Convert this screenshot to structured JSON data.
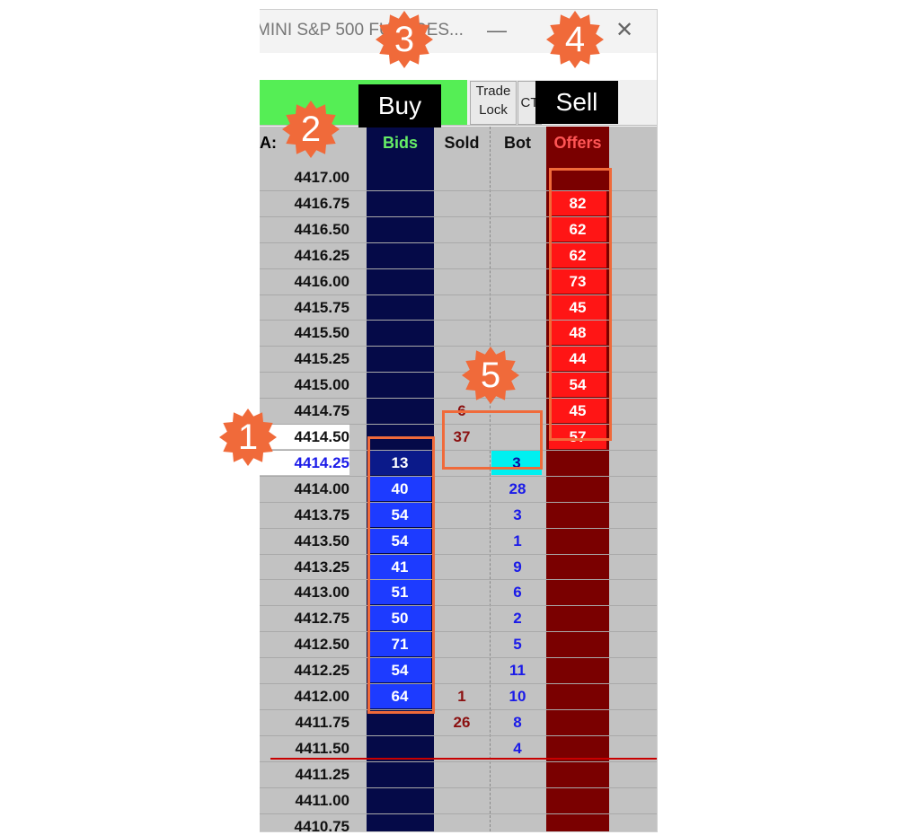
{
  "window": {
    "title": "MINI S&P 500 FUTURES...",
    "minimize_glyph": "—",
    "close_glyph": "✕",
    "toolbar": {
      "trade_lock": [
        "Trade",
        "Lock"
      ],
      "ct_label": "CT"
    }
  },
  "ladder": {
    "price_header": "A:",
    "headers": {
      "bids": "Bids",
      "sold": "Sold",
      "bot": "Bot",
      "offers": "Offers"
    },
    "header_colors": {
      "bids": "#66ee66",
      "sold": "#111111",
      "bot": "#111111",
      "offers": "#ff5555"
    },
    "rows": [
      {
        "price": "4417.00",
        "bid": "",
        "sold": "",
        "bot": "",
        "offer": ""
      },
      {
        "price": "4416.75",
        "bid": "",
        "sold": "",
        "bot": "",
        "offer": "82"
      },
      {
        "price": "4416.50",
        "bid": "",
        "sold": "",
        "bot": "",
        "offer": "62"
      },
      {
        "price": "4416.25",
        "bid": "",
        "sold": "",
        "bot": "",
        "offer": "62"
      },
      {
        "price": "4416.00",
        "bid": "",
        "sold": "",
        "bot": "",
        "offer": "73"
      },
      {
        "price": "4415.75",
        "bid": "",
        "sold": "",
        "bot": "",
        "offer": "45"
      },
      {
        "price": "4415.50",
        "bid": "",
        "sold": "",
        "bot": "",
        "offer": "48"
      },
      {
        "price": "4415.25",
        "bid": "",
        "sold": "",
        "bot": "",
        "offer": "44"
      },
      {
        "price": "4415.00",
        "bid": "",
        "sold": "",
        "bot": "",
        "offer": "54"
      },
      {
        "price": "4414.75",
        "bid": "",
        "sold": "6",
        "bot": "",
        "offer": "45"
      },
      {
        "price": "4414.50",
        "bid": "",
        "sold": "37",
        "bot": "",
        "offer": "57",
        "highlight": "ask"
      },
      {
        "price": "4414.25",
        "bid": "13",
        "sold": "",
        "bot": "3",
        "offer": "",
        "highlight": "bid",
        "bot_highlight": true
      },
      {
        "price": "4414.00",
        "bid": "40",
        "sold": "",
        "bot": "28",
        "offer": ""
      },
      {
        "price": "4413.75",
        "bid": "54",
        "sold": "",
        "bot": "3",
        "offer": ""
      },
      {
        "price": "4413.50",
        "bid": "54",
        "sold": "",
        "bot": "1",
        "offer": ""
      },
      {
        "price": "4413.25",
        "bid": "41",
        "sold": "",
        "bot": "9",
        "offer": ""
      },
      {
        "price": "4413.00",
        "bid": "51",
        "sold": "",
        "bot": "6",
        "offer": ""
      },
      {
        "price": "4412.75",
        "bid": "50",
        "sold": "",
        "bot": "2",
        "offer": ""
      },
      {
        "price": "4412.50",
        "bid": "71",
        "sold": "",
        "bot": "5",
        "offer": ""
      },
      {
        "price": "4412.25",
        "bid": "54",
        "sold": "",
        "bot": "11",
        "offer": ""
      },
      {
        "price": "4412.00",
        "bid": "64",
        "sold": "1",
        "bot": "10",
        "offer": ""
      },
      {
        "price": "4411.75",
        "bid": "",
        "sold": "26",
        "bot": "8",
        "offer": ""
      },
      {
        "price": "4411.50",
        "bid": "",
        "sold": "",
        "bot": "4",
        "offer": ""
      },
      {
        "price": "4411.25",
        "bid": "",
        "sold": "",
        "bot": "",
        "offer": ""
      },
      {
        "price": "4411.00",
        "bid": "",
        "sold": "",
        "bot": "",
        "offer": ""
      },
      {
        "price": "4410.75",
        "bid": "",
        "sold": "",
        "bot": "",
        "offer": ""
      }
    ]
  },
  "annotations": {
    "badges": [
      "1",
      "2",
      "3",
      "4",
      "5"
    ],
    "labels": {
      "buy": "Buy",
      "sell": "Sell"
    },
    "color": "#f06a3a"
  }
}
